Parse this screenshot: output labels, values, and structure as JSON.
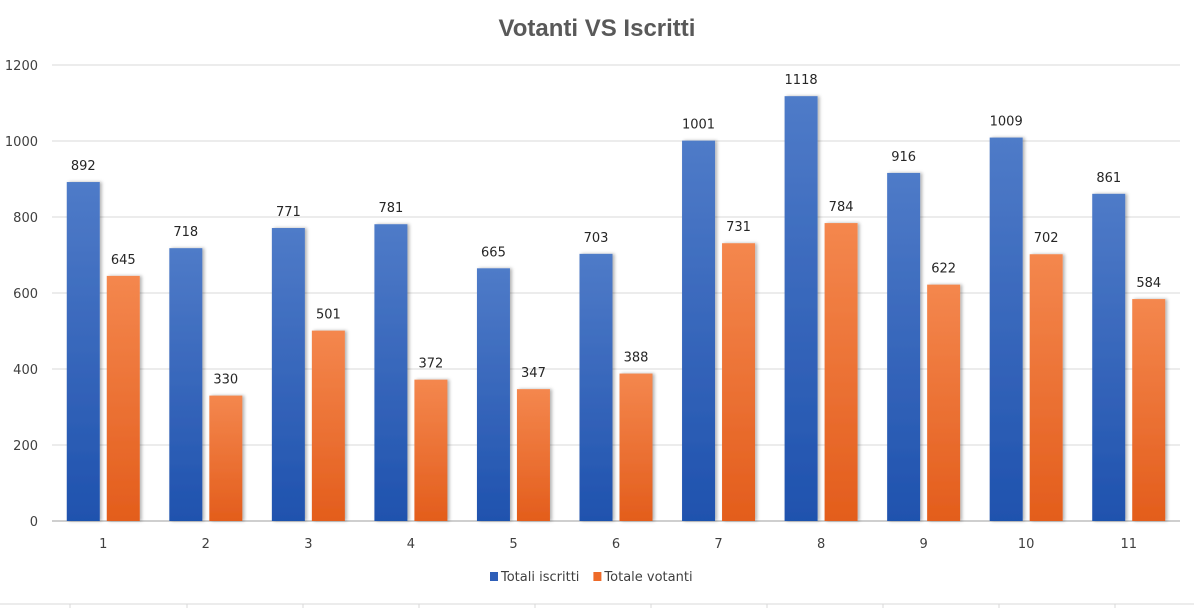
{
  "chart_data": {
    "type": "bar",
    "title": "Votanti VS Iscritti",
    "xlabel": "",
    "ylabel": "",
    "categories": [
      "1",
      "2",
      "3",
      "4",
      "5",
      "6",
      "7",
      "8",
      "9",
      "10",
      "11"
    ],
    "series": [
      {
        "name": "Totali iscritti",
        "color": "#2E5EB8",
        "values": [
          892,
          718,
          771,
          781,
          665,
          703,
          1001,
          1118,
          916,
          1009,
          861
        ]
      },
      {
        "name": "Totale votanti",
        "color": "#EE6A28",
        "values": [
          645,
          330,
          501,
          372,
          347,
          388,
          731,
          784,
          622,
          702,
          584
        ]
      }
    ],
    "ylim": [
      0,
      1200
    ],
    "yticks": [
      0,
      200,
      400,
      600,
      800,
      1000,
      1200
    ],
    "grid": true,
    "data_labels": true,
    "legend": "bottom"
  }
}
